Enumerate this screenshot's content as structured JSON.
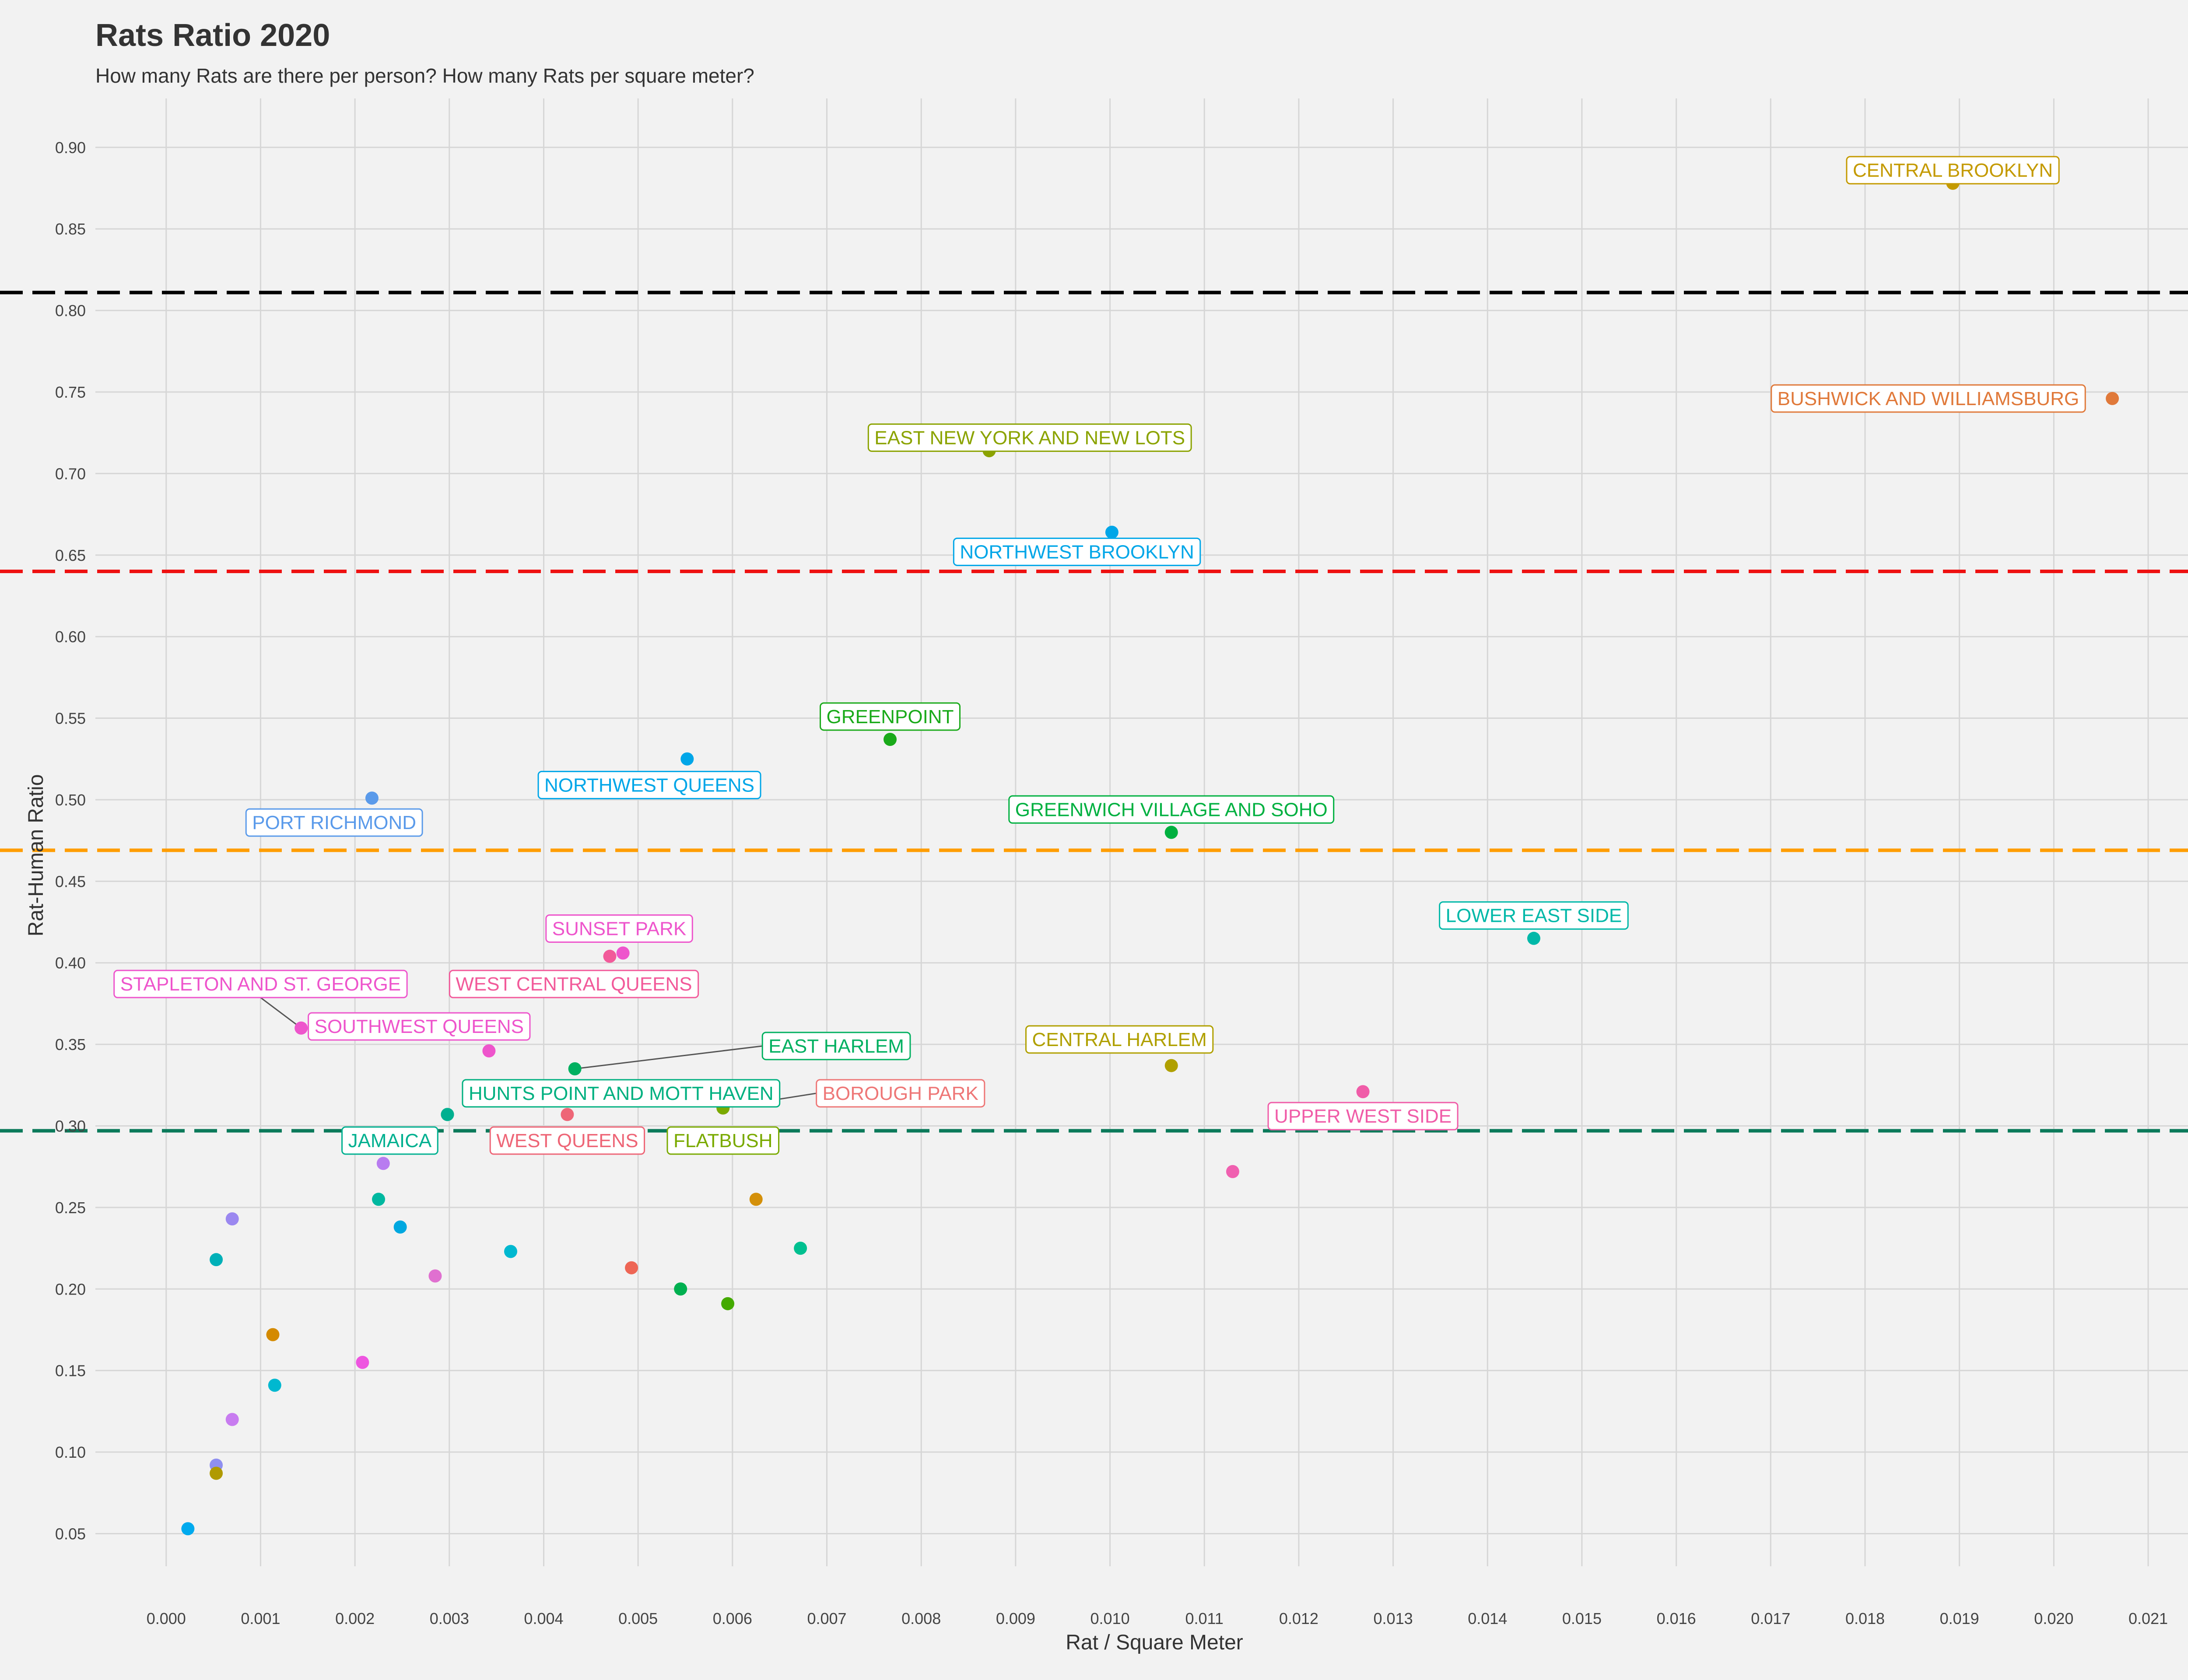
{
  "chart_data": {
    "type": "scatter",
    "title": "Rats Ratio 2020",
    "subtitle": "How many Rats are there per person? How many Rats per square meter?",
    "xlabel": "Rat / Square Meter",
    "ylabel": "Rat-Human Ratio",
    "xlim": [
      -0.00075,
      0.0217
    ],
    "ylim": [
      0.03,
      0.93
    ],
    "x_ticks": [
      "0.000",
      "0.001",
      "0.002",
      "0.003",
      "0.004",
      "0.005",
      "0.006",
      "0.007",
      "0.008",
      "0.009",
      "0.010",
      "0.011",
      "0.012",
      "0.013",
      "0.014",
      "0.015",
      "0.016",
      "0.017",
      "0.018",
      "0.019",
      "0.020",
      "0.021"
    ],
    "y_ticks": [
      "0.05",
      "0.10",
      "0.15",
      "0.20",
      "0.25",
      "0.30",
      "0.35",
      "0.40",
      "0.45",
      "0.50",
      "0.55",
      "0.60",
      "0.65",
      "0.70",
      "0.75",
      "0.80",
      "0.85",
      "0.90"
    ],
    "grid": true,
    "reference_lines": [
      {
        "y": 0.811,
        "color": "#000000"
      },
      {
        "y": 0.64,
        "color": "#ee1111"
      },
      {
        "y": 0.469,
        "color": "#ff9d00"
      },
      {
        "y": 0.297,
        "color": "#0b7a5a"
      }
    ],
    "points": [
      {
        "label": "CENTRAL BROOKLYN",
        "x": 0.01893,
        "y": 0.878,
        "color": "#c49a00",
        "lx": 0.01893,
        "ly": 0.886
      },
      {
        "label": "BUSHWICK AND WILLIAMSBURG",
        "x": 0.02062,
        "y": 0.746,
        "color": "#e0793a",
        "lx": 0.01867,
        "ly": 0.746
      },
      {
        "label": "EAST NEW YORK AND NEW LOTS",
        "x": 0.00872,
        "y": 0.714,
        "color": "#8ba300",
        "lx": 0.00915,
        "ly": 0.722
      },
      {
        "label": "NORTHWEST BROOKLYN",
        "x": 0.01002,
        "y": 0.664,
        "color": "#00a6e8",
        "lx": 0.00965,
        "ly": 0.652
      },
      {
        "label": "GREENPOINT",
        "x": 0.00767,
        "y": 0.537,
        "color": "#1aaa1a",
        "lx": 0.00767,
        "ly": 0.551
      },
      {
        "label": "NORTHWEST QUEENS",
        "x": 0.00552,
        "y": 0.525,
        "color": "#00a6e8",
        "lx": 0.00512,
        "ly": 0.509
      },
      {
        "label": "PORT RICHMOND",
        "x": 0.00218,
        "y": 0.501,
        "color": "#5a9aea",
        "lx": 0.00178,
        "ly": 0.486
      },
      {
        "label": "GREENWICH VILLAGE AND SOHO",
        "x": 0.01065,
        "y": 0.48,
        "color": "#00b040",
        "lx": 0.01065,
        "ly": 0.494
      },
      {
        "label": "LOWER EAST SIDE",
        "x": 0.01449,
        "y": 0.415,
        "color": "#00b8a8",
        "lx": 0.01449,
        "ly": 0.429
      },
      {
        "label": "SUNSET PARK",
        "x": 0.00484,
        "y": 0.406,
        "color": "#ee55cc",
        "lx": 0.0048,
        "ly": 0.421
      },
      {
        "label": "WEST CENTRAL QUEENS",
        "x": 0.0047,
        "y": 0.404,
        "color": "#f25a9a",
        "lx": 0.00432,
        "ly": 0.387
      },
      {
        "label": "STAPLETON AND ST. GEORGE",
        "x": 0.00143,
        "y": 0.36,
        "color": "#ee55cc",
        "lx": 0.001,
        "ly": 0.387,
        "leader": true
      },
      {
        "label": "SOUTHWEST QUEENS",
        "x": 0.00342,
        "y": 0.346,
        "color": "#ee55cc",
        "lx": 0.00268,
        "ly": 0.361
      },
      {
        "label": "EAST HARLEM",
        "x": 0.00433,
        "y": 0.335,
        "color": "#00b060",
        "lx": 0.0071,
        "ly": 0.349,
        "leader": true
      },
      {
        "label": "CENTRAL HARLEM",
        "x": 0.01065,
        "y": 0.337,
        "color": "#b0a000",
        "lx": 0.0101,
        "ly": 0.353
      },
      {
        "label": "HUNTS POINT AND MOTT HAVEN",
        "x": 0.00298,
        "y": 0.307,
        "color": "#00b080",
        "lx": 0.00482,
        "ly": 0.32
      },
      {
        "label": "BOROUGH PARK",
        "x": 0.0059,
        "y": 0.311,
        "color": "#ee7777",
        "lx": 0.00778,
        "ly": 0.32,
        "leader": true
      },
      {
        "label": "UPPER WEST SIDE",
        "x": 0.01268,
        "y": 0.321,
        "color": "#f05ca8",
        "lx": 0.01268,
        "ly": 0.306
      },
      {
        "label": "FLATBUSH",
        "x": 0.0059,
        "y": 0.311,
        "color": "#7aaa00",
        "lx": 0.0059,
        "ly": 0.291
      },
      {
        "label": "JAMAICA",
        "x": 0.00298,
        "y": 0.307,
        "color": "#00b090",
        "lx": 0.00237,
        "ly": 0.291
      },
      {
        "label": "WEST QUEENS",
        "x": 0.00425,
        "y": 0.307,
        "color": "#ee6677",
        "lx": 0.00425,
        "ly": 0.291
      },
      {
        "x": 0.0023,
        "y": 0.277,
        "color": "#b87cf0"
      },
      {
        "x": 0.0113,
        "y": 0.272,
        "color": "#f060b0"
      },
      {
        "x": 0.00625,
        "y": 0.255,
        "color": "#d4900a"
      },
      {
        "x": 0.00225,
        "y": 0.255,
        "color": "#00b8a0"
      },
      {
        "x": 0.0007,
        "y": 0.243,
        "color": "#9b88f0"
      },
      {
        "x": 0.00248,
        "y": 0.238,
        "color": "#00a8e0"
      },
      {
        "x": 0.00672,
        "y": 0.225,
        "color": "#00c090"
      },
      {
        "x": 0.00365,
        "y": 0.223,
        "color": "#00b8d0"
      },
      {
        "x": 0.00053,
        "y": 0.218,
        "color": "#00b0b8"
      },
      {
        "x": 0.00493,
        "y": 0.213,
        "color": "#ee6655"
      },
      {
        "x": 0.00285,
        "y": 0.208,
        "color": "#e070d0"
      },
      {
        "x": 0.00545,
        "y": 0.2,
        "color": "#00b050"
      },
      {
        "x": 0.00595,
        "y": 0.191,
        "color": "#44aa00"
      },
      {
        "x": 0.00113,
        "y": 0.172,
        "color": "#d48a00"
      },
      {
        "x": 0.00208,
        "y": 0.155,
        "color": "#ee55e0"
      },
      {
        "x": 0.00115,
        "y": 0.141,
        "color": "#00b8d0"
      },
      {
        "x": 0.0007,
        "y": 0.12,
        "color": "#c87cf0"
      },
      {
        "x": 0.00053,
        "y": 0.092,
        "color": "#8f8ff0"
      },
      {
        "x": 0.00053,
        "y": 0.087,
        "color": "#b09a00"
      },
      {
        "x": 0.00023,
        "y": 0.053,
        "color": "#00aaee"
      }
    ]
  }
}
